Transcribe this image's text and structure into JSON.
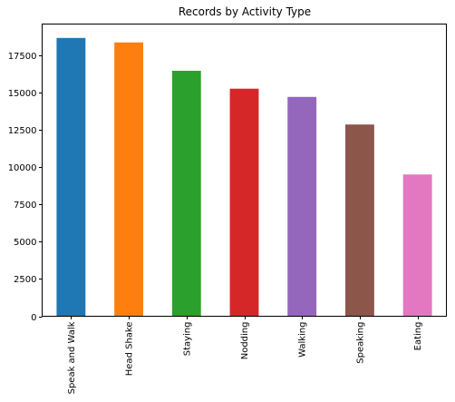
{
  "chart_data": {
    "type": "bar",
    "title": "Records by Activity Type",
    "xlabel": "",
    "ylabel": "",
    "categories": [
      "Speak and Walk",
      "Head Shake",
      "Staying",
      "Nodding",
      "Walking",
      "Speaking",
      "Eating"
    ],
    "values": [
      18650,
      18350,
      16450,
      15250,
      14700,
      12850,
      9500
    ],
    "colors": [
      "#1f77b4",
      "#ff7f0e",
      "#2ca02c",
      "#d62728",
      "#9467bd",
      "#8c564b",
      "#e377c2"
    ],
    "yticks": [
      0,
      2500,
      5000,
      7500,
      10000,
      12500,
      15000,
      17500
    ],
    "ytick_labels": [
      "0",
      "2500",
      "5000",
      "7500",
      "10000",
      "12500",
      "15000",
      "17500"
    ],
    "ylim": [
      0,
      19582
    ],
    "grid": false,
    "legend": "none"
  }
}
